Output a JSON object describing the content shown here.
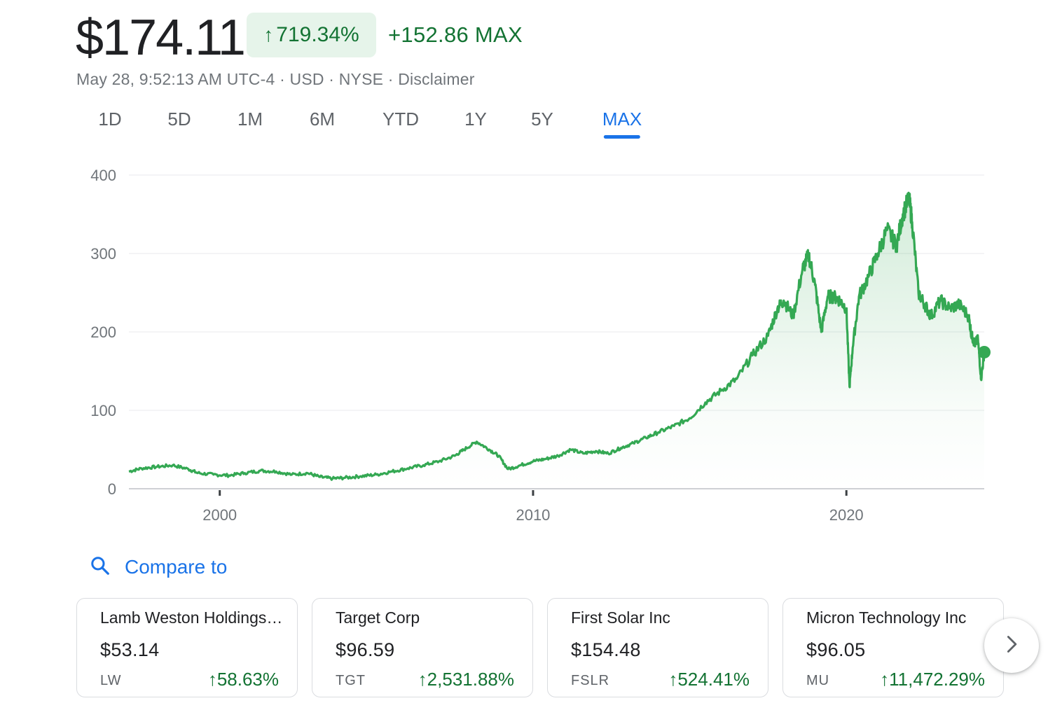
{
  "quote": {
    "price": "$174.11",
    "change_percent": "719.34%",
    "change_absolute": "+152.86 MAX",
    "timestamp": "May 28, 9:52:13 AM UTC-4",
    "currency": "USD",
    "exchange": "NYSE",
    "disclaimer": "Disclaimer",
    "sep": " · "
  },
  "tabs": [
    {
      "label": "1D"
    },
    {
      "label": "5D"
    },
    {
      "label": "1M"
    },
    {
      "label": "6M"
    },
    {
      "label": "YTD"
    },
    {
      "label": "1Y"
    },
    {
      "label": "5Y"
    },
    {
      "label": "MAX",
      "active": true
    }
  ],
  "chart_data": {
    "type": "area",
    "x_tick_labels": [
      "2000",
      "2010",
      "2020"
    ],
    "y_tick_labels": [
      "0",
      "100",
      "200",
      "300",
      "400"
    ],
    "ylim": [
      0,
      400
    ],
    "xlim": [
      1997.1,
      2024.4
    ],
    "color": "#34a853",
    "series": [
      {
        "name": "Price",
        "x": [
          1997.1,
          1997.5,
          1998.0,
          1998.5,
          1999.0,
          1999.3,
          1999.8,
          2000.3,
          2000.8,
          2001.3,
          2001.8,
          2002.3,
          2002.8,
          2003.2,
          2003.6,
          2004.0,
          2004.5,
          2005.0,
          2005.5,
          2006.0,
          2006.5,
          2007.0,
          2007.5,
          2007.8,
          2008.2,
          2008.6,
          2008.9,
          2009.2,
          2009.6,
          2010.0,
          2010.4,
          2010.8,
          2011.2,
          2011.6,
          2012.0,
          2012.4,
          2012.8,
          2013.2,
          2013.6,
          2014.0,
          2014.5,
          2015.0,
          2015.5,
          2016.0,
          2016.5,
          2017.0,
          2017.5,
          2017.8,
          2018.0,
          2018.3,
          2018.6,
          2018.8,
          2019.0,
          2019.2,
          2019.4,
          2019.6,
          2019.8,
          2020.0,
          2020.1,
          2020.2,
          2020.4,
          2020.7,
          2021.0,
          2021.3,
          2021.6,
          2021.8,
          2022.0,
          2022.1,
          2022.3,
          2022.5,
          2022.7,
          2023.0,
          2023.3,
          2023.6,
          2023.9,
          2024.0,
          2024.1,
          2024.2,
          2024.3,
          2024.4
        ],
        "values": [
          22,
          26,
          28,
          30,
          25,
          20,
          18,
          17,
          20,
          23,
          22,
          18,
          20,
          15,
          13,
          14,
          16,
          18,
          22,
          26,
          30,
          35,
          42,
          50,
          60,
          50,
          42,
          25,
          30,
          35,
          38,
          42,
          50,
          45,
          48,
          45,
          52,
          58,
          65,
          72,
          80,
          90,
          110,
          125,
          140,
          170,
          195,
          230,
          240,
          220,
          280,
          298,
          260,
          200,
          245,
          245,
          240,
          230,
          130,
          180,
          245,
          270,
          300,
          330,
          310,
          350,
          370,
          340,
          250,
          235,
          220,
          240,
          230,
          235,
          220,
          195,
          185,
          190,
          140,
          174.11
        ]
      }
    ]
  },
  "compare": {
    "label": "Compare to",
    "cards": [
      {
        "name": "Lamb Weston Holdings…",
        "price": "$53.14",
        "ticker": "LW",
        "change": "58.63%"
      },
      {
        "name": "Target Corp",
        "price": "$96.59",
        "ticker": "TGT",
        "change": "2,531.88%"
      },
      {
        "name": "First Solar Inc",
        "price": "$154.48",
        "ticker": "FSLR",
        "change": "524.41%"
      },
      {
        "name": "Micron Technology Inc",
        "price": "$96.05",
        "ticker": "MU",
        "change": "11,472.29%"
      }
    ]
  },
  "colors": {
    "up_green": "#137333",
    "accent_blue": "#1a73e8",
    "chart_green": "#34a853"
  }
}
